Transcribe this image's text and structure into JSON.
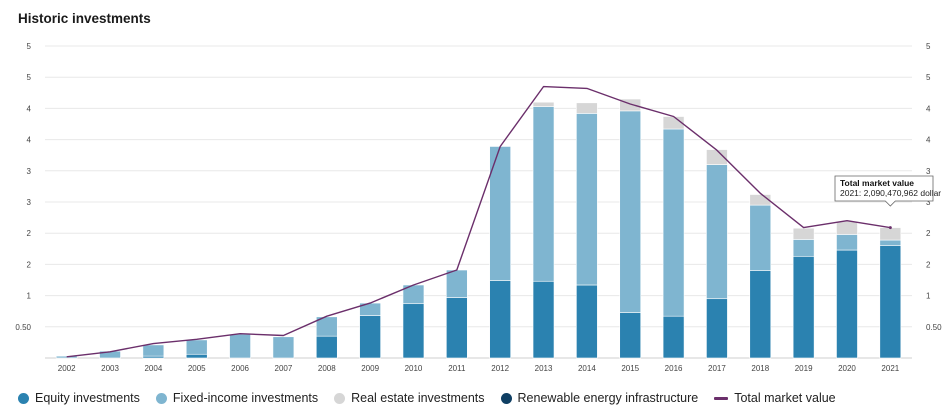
{
  "page": {
    "title": "Historic investments"
  },
  "colors": {
    "equity": "#2b82b0",
    "fixed_income": "#7fb5d0",
    "real_estate": "#d6d6d6",
    "renewable": "#0f3f63",
    "total_line": "#6b2f6b",
    "grid": "#e8e8e8"
  },
  "legend": [
    {
      "label": "Equity investments",
      "series": "equity",
      "kind": "dot"
    },
    {
      "label": "Fixed-income investments",
      "series": "fixed_income",
      "kind": "dot"
    },
    {
      "label": "Real estate investments",
      "series": "real_estate",
      "kind": "dot"
    },
    {
      "label": "Renewable energy infrastructure",
      "series": "renewable",
      "kind": "dot"
    },
    {
      "label": "Total market value",
      "series": "total_line",
      "kind": "line"
    }
  ],
  "tooltip": {
    "title": "Total market value",
    "text": "2021: 2,090,470,962 dollar",
    "year": "2021"
  },
  "chart_data": {
    "type": "bar",
    "stacked": true,
    "x": [
      "2002",
      "2003",
      "2004",
      "2005",
      "2006",
      "2007",
      "2008",
      "2009",
      "2010",
      "2011",
      "2012",
      "2013",
      "2014",
      "2015",
      "2016",
      "2017",
      "2018",
      "2019",
      "2020",
      "2021"
    ],
    "y_ticks": [
      0.5,
      1,
      1.5,
      2,
      2.5,
      3,
      3.5,
      4,
      4.5,
      5
    ],
    "y_tick_labels": [
      "0.50",
      "1",
      "2",
      "2",
      "3",
      "3",
      "4",
      "4",
      "5",
      "5"
    ],
    "ylim": [
      0,
      5
    ],
    "grid": true,
    "legend_position": "bottom",
    "series": [
      {
        "name": "Equity investments",
        "key": "equity",
        "values": [
          0.0,
          0.0,
          0.03,
          0.06,
          0.0,
          0.0,
          0.35,
          0.68,
          0.87,
          0.97,
          1.24,
          1.23,
          1.17,
          0.73,
          0.67,
          0.95,
          1.4,
          1.63,
          1.73,
          1.8
        ]
      },
      {
        "name": "Fixed-income investments",
        "key": "fixed_income",
        "values": [
          0.03,
          0.11,
          0.18,
          0.23,
          0.38,
          0.34,
          0.31,
          0.2,
          0.3,
          0.44,
          2.15,
          2.8,
          2.75,
          3.23,
          3.0,
          2.15,
          1.05,
          0.27,
          0.25,
          0.09
        ]
      },
      {
        "name": "Real estate investments",
        "key": "real_estate",
        "values": [
          0,
          0,
          0,
          0,
          0,
          0,
          0,
          0,
          0,
          0,
          0,
          0.07,
          0.17,
          0.19,
          0.2,
          0.24,
          0.17,
          0.18,
          0.21,
          0.2
        ]
      },
      {
        "name": "Renewable energy infrastructure",
        "key": "renewable",
        "values": [
          0,
          0,
          0,
          0,
          0,
          0,
          0,
          0,
          0,
          0,
          0,
          0,
          0,
          0,
          0,
          0,
          0,
          0,
          0,
          0
        ]
      }
    ],
    "line": {
      "name": "Total market value",
      "values": [
        0.02,
        0.1,
        0.23,
        0.3,
        0.39,
        0.36,
        0.67,
        0.88,
        1.17,
        1.41,
        3.39,
        4.35,
        4.32,
        4.07,
        3.87,
        3.33,
        2.64,
        2.09,
        2.2,
        2.09
      ]
    }
  }
}
